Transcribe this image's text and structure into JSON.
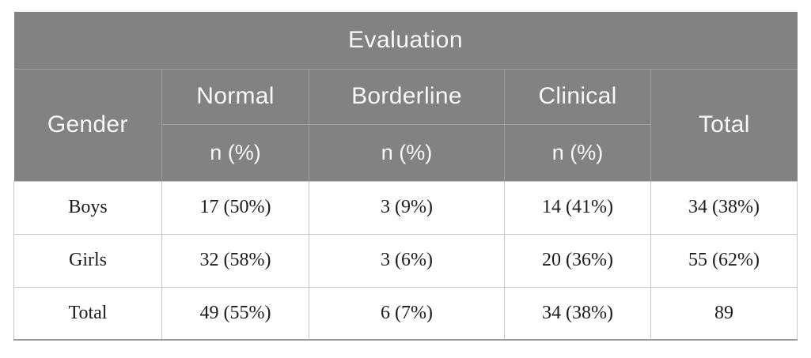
{
  "table": {
    "title": "Evaluation",
    "header": {
      "gender": "Gender",
      "categories": [
        "Normal",
        "Borderline",
        "Clinical"
      ],
      "unit": "n (%)",
      "total": "Total"
    },
    "rows": [
      {
        "cells": [
          "Boys",
          "17 (50%)",
          "3 (9%)",
          "14 (41%)",
          "34 (38%)"
        ]
      },
      {
        "cells": [
          "Girls",
          "32 (58%)",
          "3 (6%)",
          "20 (36%)",
          "55 (62%)"
        ]
      },
      {
        "cells": [
          "Total",
          "49 (55%)",
          "6 (7%)",
          "34 (38%)",
          "89"
        ]
      }
    ],
    "colors": {
      "header_bg": "#828282",
      "header_text": "#f8f8f8",
      "header_divider": "#9d9d9d",
      "body_border": "#c6c6c6",
      "body_text": "#1c1c1c",
      "table_bottom_border": "#9c9c9c",
      "page_bg": "#ffffff"
    }
  },
  "chart_data": {
    "type": "table",
    "title": "Evaluation",
    "columns": [
      "Gender",
      "Normal n (%)",
      "Borderline n (%)",
      "Clinical n (%)",
      "Total"
    ],
    "rows": [
      [
        "Boys",
        "17 (50%)",
        "3 (9%)",
        "14 (41%)",
        "34 (38%)"
      ],
      [
        "Girls",
        "32 (58%)",
        "3 (6%)",
        "20 (36%)",
        "55 (62%)"
      ],
      [
        "Total",
        "49 (55%)",
        "6 (7%)",
        "34 (38%)",
        "89"
      ]
    ]
  }
}
